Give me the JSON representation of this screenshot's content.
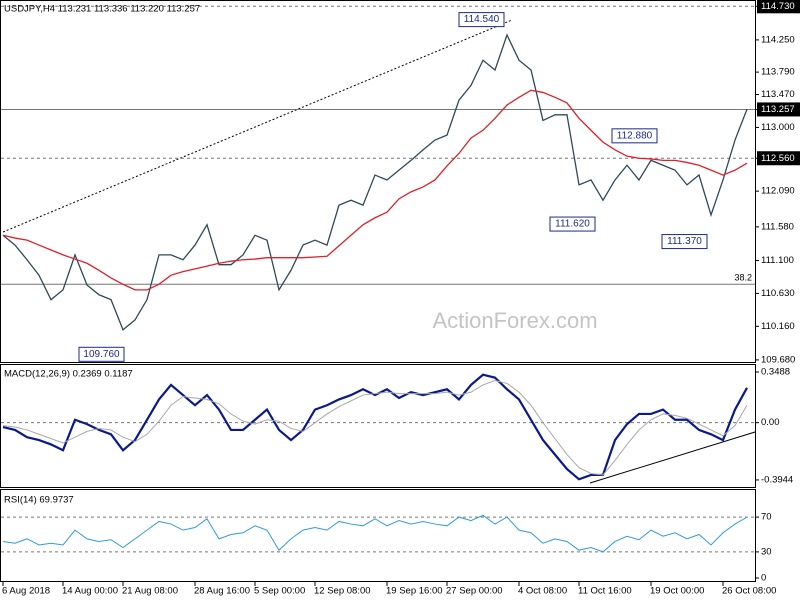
{
  "chart_data": [
    {
      "type": "line",
      "title": "USDJPY,H4  113.231 113.336 113.220 113.257",
      "watermark": "ActionForex.com",
      "categories": [
        "6 Aug 2018",
        null,
        null,
        null,
        null,
        "14 Aug 00:00",
        null,
        null,
        null,
        null,
        "21 Aug 08:00",
        null,
        null,
        null,
        null,
        null,
        "28 Aug 16:00",
        null,
        null,
        null,
        null,
        "5 Sep 00:00",
        null,
        null,
        null,
        null,
        "12 Sep 08:00",
        null,
        null,
        null,
        null,
        null,
        "19 Sep 16:00",
        null,
        null,
        null,
        null,
        "27 Sep 00:00",
        null,
        null,
        null,
        null,
        null,
        "4 Oct 08:00",
        null,
        null,
        null,
        null,
        "11 Oct 16:00",
        null,
        null,
        null,
        null,
        null,
        "19 Oct 00:00",
        null,
        null,
        null,
        null,
        null,
        "26 Oct 08:00",
        null,
        null
      ],
      "series": [
        {
          "name": "USDJPY",
          "color": "#2e4a58",
          "values": [
            111.46,
            111.32,
            111.11,
            110.89,
            110.54,
            110.68,
            111.18,
            110.75,
            110.61,
            110.54,
            110.11,
            110.25,
            110.54,
            111.18,
            111.18,
            111.11,
            111.32,
            111.61,
            111.04,
            111.04,
            111.18,
            111.46,
            111.39,
            110.68,
            110.96,
            111.32,
            111.39,
            111.32,
            111.89,
            111.96,
            111.89,
            112.32,
            112.25,
            112.39,
            112.53,
            112.68,
            112.82,
            112.89,
            113.39,
            113.6,
            113.96,
            113.82,
            114.32,
            113.96,
            113.82,
            113.1,
            113.18,
            113.18,
            112.18,
            112.25,
            111.96,
            112.25,
            112.46,
            112.25,
            112.53,
            112.46,
            112.39,
            112.18,
            112.32,
            111.75,
            112.25,
            112.82,
            113.26
          ]
        },
        {
          "name": "MA",
          "color": "#e0202a",
          "values": [
            111.46,
            111.42,
            111.39,
            111.32,
            111.25,
            111.18,
            111.12,
            111.06,
            110.96,
            110.85,
            110.76,
            110.68,
            110.68,
            110.76,
            110.89,
            110.94,
            110.98,
            111.02,
            111.06,
            111.09,
            111.11,
            111.12,
            111.14,
            111.14,
            111.14,
            111.14,
            111.15,
            111.16,
            111.31,
            111.46,
            111.61,
            111.71,
            111.79,
            111.98,
            112.08,
            112.15,
            112.25,
            112.45,
            112.63,
            112.85,
            112.96,
            113.13,
            113.32,
            113.43,
            113.53,
            113.5,
            113.43,
            113.35,
            113.13,
            112.96,
            112.79,
            112.68,
            112.59,
            112.56,
            112.55,
            112.53,
            112.53,
            112.5,
            112.46,
            112.39,
            112.32,
            112.39,
            112.49
          ]
        }
      ],
      "ylim": [
        109.65,
        114.82
      ],
      "yticks": [
        {
          "value": 114.73,
          "label": "114.730",
          "highlight": true
        },
        {
          "value": 114.25,
          "label": "114.250"
        },
        {
          "value": 113.79,
          "label": "113.790"
        },
        {
          "value": 113.47,
          "label": "113.470"
        },
        {
          "value": 113.257,
          "label": "113.257",
          "highlight": true
        },
        {
          "value": 113,
          "label": "113.000"
        },
        {
          "value": 112.56,
          "label": "112.560",
          "highlight": true
        },
        {
          "value": 112.09,
          "label": "112.090"
        },
        {
          "value": 111.58,
          "label": "111.580"
        },
        {
          "value": 111.1,
          "label": "111.100"
        },
        {
          "value": 110.63,
          "label": "110.630"
        },
        {
          "value": 110.16,
          "label": "110.160"
        },
        {
          "value": 109.68,
          "label": "109.680"
        }
      ],
      "hlines": [
        {
          "value": 114.73,
          "dashed": true
        },
        {
          "value": 113.257,
          "dashed": false
        },
        {
          "value": 112.56,
          "dashed": true
        },
        {
          "value": 110.76,
          "dashed": false,
          "label": "38.2"
        }
      ],
      "annotations": [
        {
          "label": "114.540",
          "value": 114.54
        },
        {
          "label": "109.760",
          "value": 109.76
        },
        {
          "label": "111.620",
          "value": 111.62
        },
        {
          "label": "112.880",
          "value": 112.88
        },
        {
          "label": "111.370",
          "value": 111.37
        }
      ]
    },
    {
      "type": "line",
      "title": "MACD(12,26,9) 0.2369 0.1187",
      "series": [
        {
          "name": "MACD",
          "color": "#0a1a8a",
          "width": 2.2,
          "values": [
            -0.03,
            -0.05,
            -0.1,
            -0.12,
            -0.15,
            -0.19,
            0.02,
            -0.01,
            -0.05,
            -0.08,
            -0.19,
            -0.12,
            0.02,
            0.16,
            0.26,
            0.19,
            0.12,
            0.19,
            0.09,
            -0.05,
            -0.05,
            0.02,
            0.09,
            -0.05,
            -0.12,
            -0.05,
            0.09,
            0.12,
            0.16,
            0.19,
            0.23,
            0.19,
            0.23,
            0.17,
            0.21,
            0.19,
            0.21,
            0.23,
            0.16,
            0.26,
            0.33,
            0.31,
            0.23,
            0.16,
            0.02,
            -0.12,
            -0.22,
            -0.32,
            -0.39,
            -0.36,
            -0.36,
            -0.12,
            -0.01,
            0.06,
            0.06,
            0.09,
            0.02,
            0.02,
            -0.05,
            -0.08,
            -0.12,
            0.09,
            0.24
          ]
        },
        {
          "name": "Signal",
          "color": "#a8a8a8",
          "width": 1,
          "values": [
            -0.02,
            -0.03,
            -0.05,
            -0.08,
            -0.11,
            -0.14,
            -0.1,
            -0.06,
            -0.04,
            -0.05,
            -0.1,
            -0.13,
            -0.08,
            0.01,
            0.12,
            0.18,
            0.17,
            0.16,
            0.13,
            0.06,
            0.01,
            -0.01,
            0.02,
            0.01,
            -0.04,
            -0.06,
            0.0,
            0.06,
            0.11,
            0.15,
            0.19,
            0.2,
            0.21,
            0.2,
            0.2,
            0.2,
            0.2,
            0.21,
            0.19,
            0.21,
            0.26,
            0.29,
            0.27,
            0.21,
            0.12,
            0.0,
            -0.11,
            -0.22,
            -0.31,
            -0.35,
            -0.36,
            -0.26,
            -0.15,
            -0.05,
            0.02,
            0.06,
            0.05,
            0.03,
            -0.01,
            -0.05,
            -0.09,
            -0.02,
            0.12
          ]
        }
      ],
      "ylim": [
        -0.443,
        0.397
      ],
      "yticks": [
        0.3488,
        {
          "value": 0,
          "label": "0.00"
        },
        -0.3944
      ],
      "hlines": [
        {
          "value": 0,
          "dashed": true
        }
      ]
    },
    {
      "type": "line",
      "title": "RSI(14) 69.9737",
      "series": [
        {
          "name": "RSI",
          "color": "#2e9be0",
          "width": 1,
          "values": [
            42,
            40,
            45,
            38,
            40,
            38,
            55,
            45,
            42,
            44,
            35,
            45,
            55,
            65,
            62,
            55,
            58,
            68,
            45,
            50,
            52,
            60,
            55,
            32,
            45,
            55,
            58,
            55,
            65,
            62,
            60,
            68,
            60,
            66,
            62,
            65,
            62,
            60,
            70,
            66,
            72,
            62,
            70,
            55,
            52,
            40,
            45,
            42,
            32,
            35,
            30,
            42,
            48,
            44,
            55,
            48,
            52,
            45,
            50,
            38,
            52,
            62,
            69.97
          ]
        }
      ],
      "ylim": [
        0,
        100
      ],
      "yticks": [
        70,
        30,
        0
      ],
      "hlines": [
        {
          "value": 70,
          "dashed": true
        },
        {
          "value": 30,
          "dashed": true
        }
      ]
    }
  ]
}
